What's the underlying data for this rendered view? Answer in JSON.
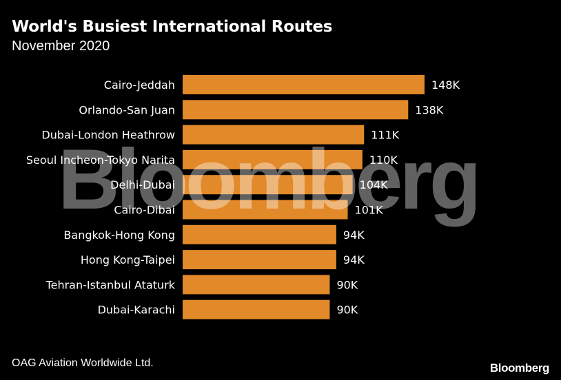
{
  "title": "World's Busiest International Routes",
  "subtitle": "November 2020",
  "source": "OAG Aviation Worldwide Ltd.",
  "logo": "Bloomberg",
  "watermark": "Bloomberg",
  "colors": {
    "background": "#000000",
    "bar": "#e2892a",
    "text": "#ffffff"
  },
  "chart_data": {
    "type": "bar",
    "orientation": "horizontal",
    "categories": [
      "Cairo-Jeddah",
      "Orlando-San Juan",
      "Dubai-London Heathrow",
      "Seoul Incheon-Tokyo Narita",
      "Delhi-Dubai",
      "Cairo-Dibai",
      "Bangkok-Hong Kong",
      "Hong Kong-Taipei",
      "Tehran-Istanbul Ataturk",
      "Dubai-Karachi"
    ],
    "values": [
      148000,
      138000,
      111000,
      110000,
      104000,
      101000,
      94000,
      94000,
      90000,
      90000
    ],
    "data_labels": [
      "148K",
      "138K",
      "111K",
      "110K",
      "104K",
      "101K",
      "94K",
      "94K",
      "90K",
      "90K"
    ],
    "xlim": [
      0,
      148000
    ],
    "grid": false,
    "legend": "none"
  }
}
